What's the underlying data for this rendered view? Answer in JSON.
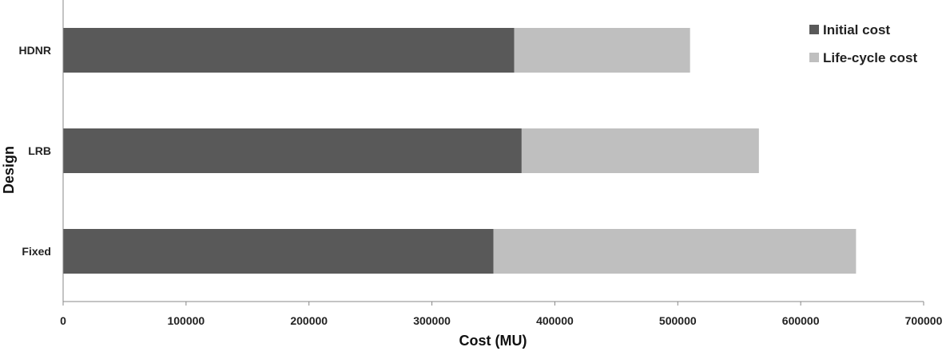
{
  "chart_data": {
    "type": "bar",
    "orientation": "horizontal",
    "stacked": true,
    "categories": [
      "HDNR",
      "LRB",
      "Fixed"
    ],
    "series": [
      {
        "name": "Initial cost",
        "values": [
          367000,
          373000,
          350000
        ],
        "color": "#595959"
      },
      {
        "name": "Life-cycle cost",
        "values": [
          143000,
          193000,
          295000
        ],
        "color": "#bfbfbf"
      }
    ],
    "xlabel": "Cost (MU)",
    "ylabel": "Design",
    "xlim": [
      0,
      700000
    ],
    "xticks": [
      "0",
      "100000",
      "200000",
      "300000",
      "400000",
      "500000",
      "600000",
      "700000"
    ],
    "grid": false,
    "legend_position": "top-right"
  }
}
